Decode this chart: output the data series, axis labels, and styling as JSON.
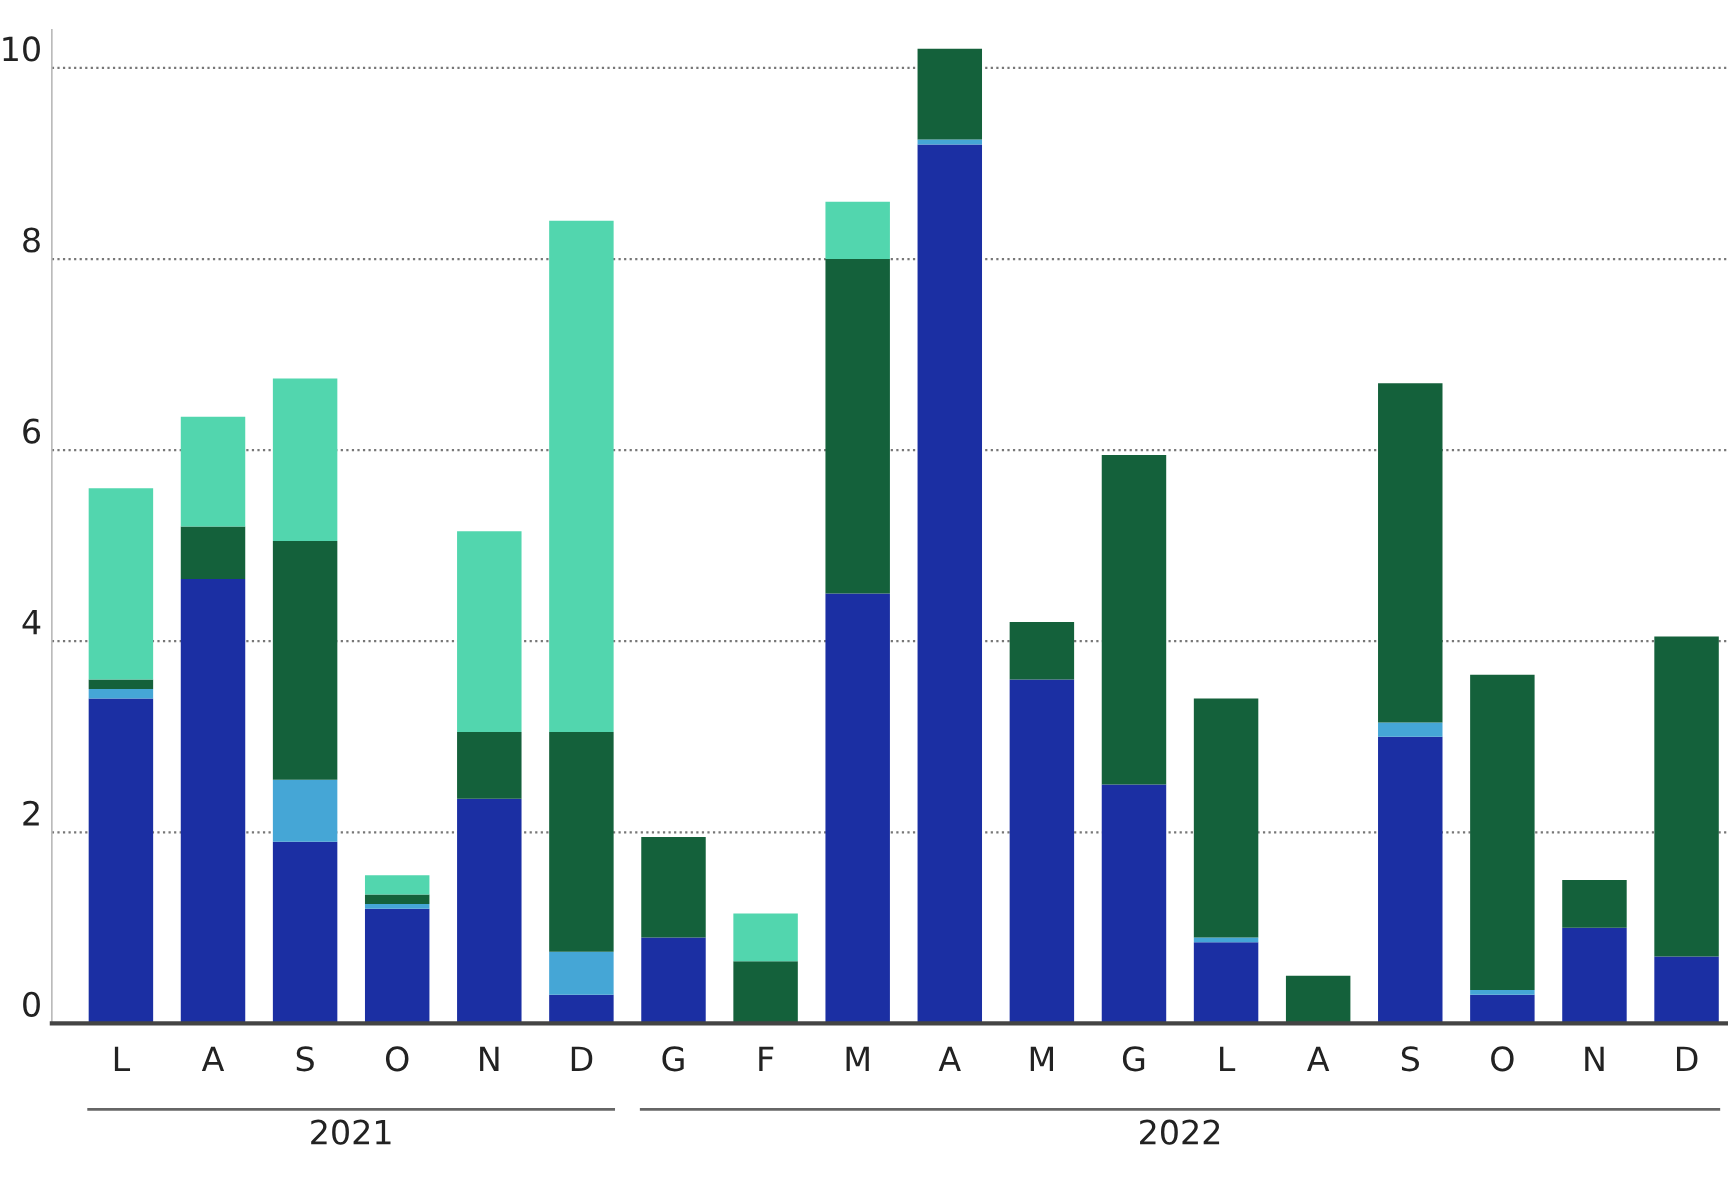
{
  "chart_data": {
    "type": "bar",
    "stacked": true,
    "categories": [
      "L",
      "A",
      "S",
      "O",
      "N",
      "D",
      "G",
      "F",
      "M",
      "A",
      "M",
      "G",
      "L",
      "A",
      "S",
      "O",
      "N",
      "D"
    ],
    "series": [
      {
        "color": "#1b2fa3",
        "values": [
          3.4,
          4.65,
          1.9,
          1.2,
          2.35,
          0.3,
          0.9,
          0,
          4.5,
          9.2,
          3.6,
          2.5,
          0.85,
          0,
          3.0,
          0.3,
          1.0,
          0.7
        ]
      },
      {
        "color": "#45a6d6",
        "values": [
          0.1,
          0,
          0.65,
          0.05,
          0,
          0.45,
          0,
          0,
          0,
          0.05,
          0,
          0,
          0.05,
          0,
          0.15,
          0.05,
          0,
          0
        ]
      },
      {
        "color": "#14613b",
        "values": [
          0.1,
          0.55,
          2.5,
          0.1,
          0.7,
          2.3,
          1.05,
          0.65,
          3.5,
          0.95,
          0.6,
          3.45,
          2.5,
          0.5,
          3.55,
          3.3,
          0.5,
          3.35
        ]
      },
      {
        "color": "#52d6ae",
        "values": [
          2.0,
          1.15,
          1.7,
          0.2,
          2.1,
          5.35,
          0,
          0.5,
          0.6,
          0,
          0,
          0,
          0,
          0,
          0,
          0,
          0,
          0
        ]
      }
    ],
    "ylim": [
      0,
      10.4
    ],
    "yticks": [
      0,
      2,
      4,
      6,
      8,
      10
    ],
    "grid": "y",
    "annotations": [
      "2021",
      "2022"
    ]
  }
}
